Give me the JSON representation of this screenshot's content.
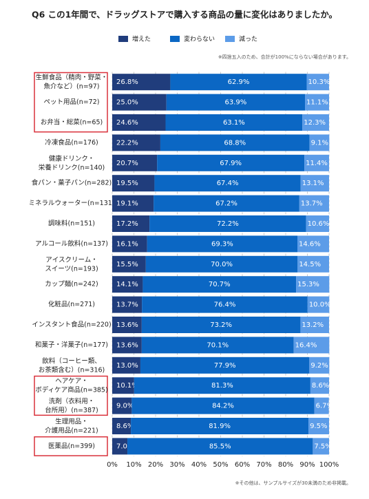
{
  "chart_data": {
    "type": "stacked-bar-horizontal",
    "title": "Q6 この1年間で、ドラッグストアで購入する商品の量に変化はありましたか。",
    "note": "※四捨五入のため、合計が100%にならない場合があります。",
    "footnote": "※その他は、サンプルサイズが30未満のため非掲載。",
    "categories": [
      "生鮮食品（精肉・野菜・\n魚介など）(n=97)",
      "ペット用品(n=72)",
      "お弁当・総菜(n=65)",
      "冷凍食品(n=176)",
      "健康ドリンク・\n栄養ドリンク(n=140)",
      "食パン・菓子パン(n=282)",
      "ミネラルウォーター(n=131)",
      "調味料(n=151)",
      "アルコール飲料(n=137)",
      "アイスクリーム・\nスイーツ(n=193)",
      "カップ麺(n=242)",
      "化粧品(n=271)",
      "インスタント食品(n=220)",
      "和菓子・洋菓子(n=177)",
      "飲料（コーヒー類、\nお茶類含む）(n=316)",
      "ヘアケア・\nボディケア商品(n=385)",
      "洗剤（衣料用・\n台所用）(n=387)",
      "生理用品・\n介護用品(n=221)",
      "医薬品(n=399)"
    ],
    "series": [
      {
        "name": "増えた",
        "color": "#203d7c",
        "values": [
          26.8,
          25,
          24.6,
          22.2,
          20.7,
          19.5,
          19.1,
          17.2,
          16.1,
          15.5,
          14.1,
          13.7,
          13.6,
          13.6,
          13,
          10.1,
          9,
          8.6,
          7
        ],
        "value_labels": [
          "26.8%",
          "25.0%",
          "24.6%",
          "22.2%",
          "20.7%",
          "19.5%",
          "19.1%",
          "17.2%",
          "16.1%",
          "15.5%",
          "14.1%",
          "13.7%",
          "13.6%",
          "13.6%",
          "13.0%",
          "10.1%",
          "9.0%",
          "8.6%",
          "7.0%"
        ]
      },
      {
        "name": "変わらない",
        "color": "#0b67c4",
        "values": [
          62.9,
          63.9,
          63.1,
          68.8,
          67.9,
          67.4,
          67.2,
          72.2,
          69.3,
          70,
          70.7,
          76.4,
          73.2,
          70.1,
          77.9,
          81.3,
          84.2,
          81.9,
          85.5
        ],
        "value_labels": [
          "62.9%",
          "63.9%",
          "63.1%",
          "68.8%",
          "67.9%",
          "67.4%",
          "67.2%",
          "72.2%",
          "69.3%",
          "70.0%",
          "70.7%",
          "76.4%",
          "73.2%",
          "70.1%",
          "77.9%",
          "81.3%",
          "84.2%",
          "81.9%",
          "85.5%"
        ]
      },
      {
        "name": "減った",
        "color": "#5c9ce8",
        "values": [
          10.3,
          11.1,
          12.3,
          9.1,
          11.4,
          13.1,
          13.7,
          10.6,
          14.6,
          14.5,
          15.3,
          10,
          13.2,
          16.4,
          9.2,
          8.6,
          6.7,
          9.5,
          7.5
        ],
        "value_labels": [
          "10.3%",
          "11.1%",
          "12.3%",
          "9.1%",
          "11.4%",
          "13.1%",
          "13.7%",
          "10.6%",
          "14.6%",
          "14.5%",
          "15.3%",
          "10.0%",
          "13.2%",
          "16.4%",
          "9.2%",
          "8.6%",
          "6.7%",
          "9.5%",
          "7.5%"
        ]
      }
    ],
    "xlim": [
      0,
      100
    ],
    "xticks": [
      {
        "value": 0,
        "label": "0%"
      },
      {
        "value": 10,
        "label": "10%"
      },
      {
        "value": 20,
        "label": "20%"
      },
      {
        "value": 30,
        "label": "30%"
      },
      {
        "value": 40,
        "label": "40%"
      },
      {
        "value": 50,
        "label": "50%"
      },
      {
        "value": 60,
        "label": "60%"
      },
      {
        "value": 70,
        "label": "70%"
      },
      {
        "value": 80,
        "label": "80%"
      },
      {
        "value": 90,
        "label": "90%"
      },
      {
        "value": 100,
        "label": "100%"
      }
    ],
    "grid": true,
    "highlighted": [
      [
        0,
        2
      ],
      [
        15,
        16
      ],
      [
        18,
        18
      ]
    ]
  }
}
